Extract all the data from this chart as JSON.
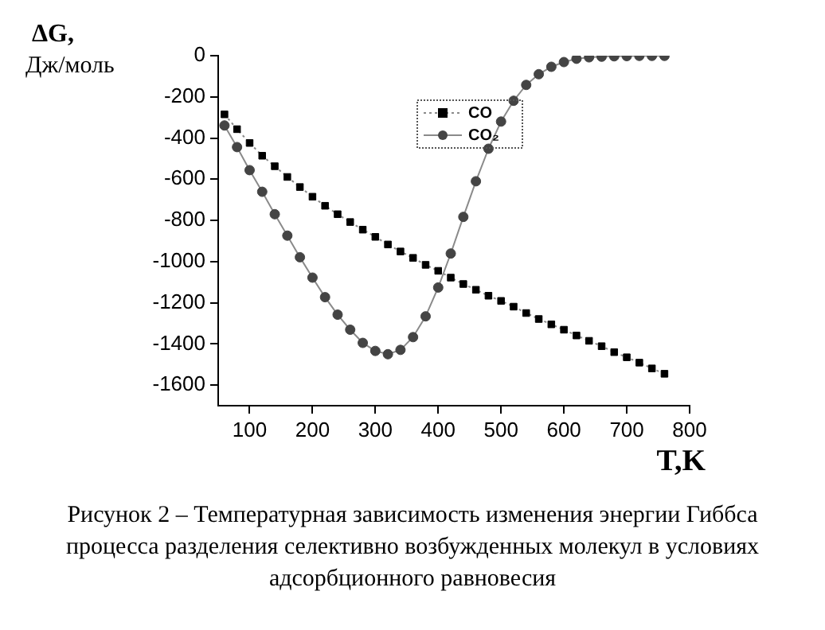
{
  "chart_data": {
    "type": "line",
    "xlabel": "T,K",
    "ylabel": "ΔG, Дж/моль",
    "xlim": [
      50,
      800
    ],
    "xticks": [
      100,
      200,
      300,
      400,
      500,
      600,
      700,
      800
    ],
    "ylim": [
      -1700,
      0
    ],
    "yticks": [
      0,
      -200,
      -400,
      -600,
      -800,
      -1000,
      -1200,
      -1400,
      -1600
    ],
    "grid": false,
    "legend": "top",
    "x": [
      60,
      80,
      100,
      120,
      140,
      160,
      180,
      200,
      220,
      240,
      260,
      280,
      300,
      320,
      340,
      360,
      380,
      400,
      420,
      440,
      460,
      480,
      500,
      520,
      540,
      560,
      580,
      600,
      620,
      640,
      660,
      680,
      700,
      720,
      740,
      760
    ],
    "series": [
      {
        "name": "CO",
        "color": "#000000",
        "marker": "square",
        "line_style": "dotted",
        "values": [
          -285,
          -357,
          -424,
          -486,
          -537,
          -589,
          -638,
          -685,
          -729,
          -770,
          -808,
          -845,
          -880,
          -917,
          -951,
          -982,
          -1016,
          -1045,
          -1078,
          -1109,
          -1137,
          -1166,
          -1191,
          -1219,
          -1250,
          -1279,
          -1305,
          -1331,
          -1359,
          -1385,
          -1411,
          -1440,
          -1465,
          -1491,
          -1519,
          -1545
        ]
      },
      {
        "name": "CO₂",
        "color": "#444444",
        "marker": "circle",
        "line_style": "solid",
        "values": [
          -339,
          -444,
          -556,
          -661,
          -770,
          -874,
          -979,
          -1078,
          -1173,
          -1258,
          -1331,
          -1395,
          -1434,
          -1450,
          -1429,
          -1367,
          -1266,
          -1126,
          -961,
          -783,
          -610,
          -452,
          -320,
          -219,
          -142,
          -90,
          -54,
          -31,
          -15,
          -8,
          -5,
          -3,
          -2,
          -1,
          -1,
          -1
        ]
      }
    ],
    "annotations": [
      "Рисунок 2 – Температурная зависимость изменения энергии Гиббса процесса разделения селективно возбужденных молекул в условиях адсорбционного равновесия"
    ]
  }
}
